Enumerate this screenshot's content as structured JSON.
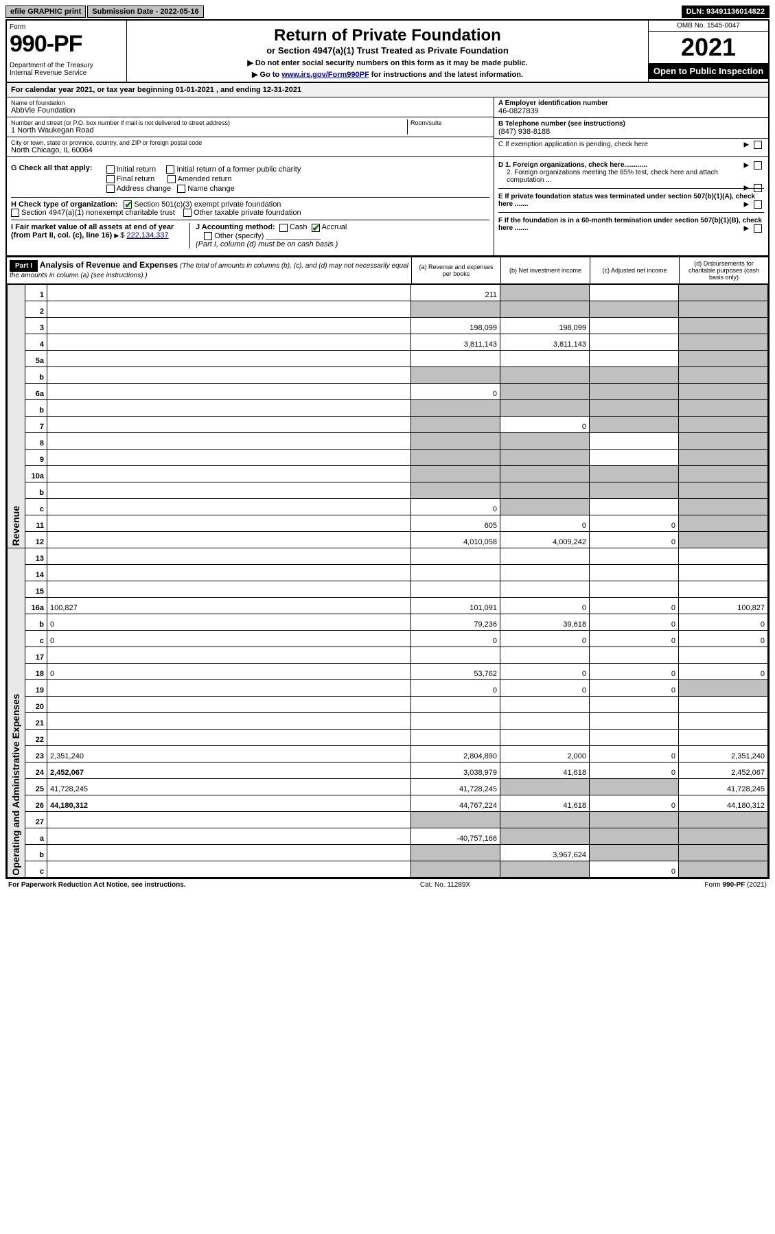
{
  "top": {
    "efile": "efile GRAPHIC print",
    "submission": "Submission Date - 2022-05-16",
    "dln": "DLN: 93491136014822"
  },
  "header": {
    "form_label": "Form",
    "form_num": "990-PF",
    "dept": "Department of the Treasury\nInternal Revenue Service",
    "title": "Return of Private Foundation",
    "subtitle": "or Section 4947(a)(1) Trust Treated as Private Foundation",
    "note1": "▶ Do not enter social security numbers on this form as it may be made public.",
    "note2_pre": "▶ Go to ",
    "note2_link": "www.irs.gov/Form990PF",
    "note2_post": " for instructions and the latest information.",
    "omb": "OMB No. 1545-0047",
    "year": "2021",
    "open": "Open to Public Inspection"
  },
  "cal_year": "For calendar year 2021, or tax year beginning 01-01-2021                          , and ending 12-31-2021",
  "info": {
    "name_lbl": "Name of foundation",
    "name": "AbbVie Foundation",
    "addr_lbl": "Number and street (or P.O. box number if mail is not delivered to street address)",
    "room_lbl": "Room/suite",
    "addr": "1 North Waukegan Road",
    "city_lbl": "City or town, state or province, country, and ZIP or foreign postal code",
    "city": "North Chicago, IL  60064",
    "ein_lbl": "A Employer identification number",
    "ein": "46-0827839",
    "phone_lbl": "B Telephone number (see instructions)",
    "phone": "(847) 938-8188",
    "c_lbl": "C If exemption application is pending, check here"
  },
  "g": {
    "label": "G Check all that apply:",
    "opts": [
      "Initial return",
      "Initial return of a former public charity",
      "Final return",
      "Amended return",
      "Address change",
      "Name change"
    ]
  },
  "h": {
    "label": "H Check type of organization:",
    "opt1": "Section 501(c)(3) exempt private foundation",
    "opt2": "Section 4947(a)(1) nonexempt charitable trust",
    "opt3": "Other taxable private foundation"
  },
  "i": {
    "label": "I Fair market value of all assets at end of year (from Part II, col. (c), line 16)",
    "value": "222,134,337"
  },
  "j": {
    "label": "J Accounting method:",
    "cash": "Cash",
    "accrual": "Accrual",
    "other": "Other (specify)",
    "note": "(Part I, column (d) must be on cash basis.)"
  },
  "d": {
    "d1": "D 1. Foreign organizations, check here............",
    "d2": "2. Foreign organizations meeting the 85% test, check here and attach computation ..."
  },
  "e": "E  If private foundation status was terminated under section 507(b)(1)(A), check here .......",
  "f": "F  If the foundation is in a 60-month termination under section 507(b)(1)(B), check here .......",
  "part1": {
    "label": "Part I",
    "title": "Analysis of Revenue and Expenses",
    "note": "(The total of amounts in columns (b), (c), and (d) may not necessarily equal the amounts in column (a) (see instructions).)",
    "col_a": "(a)  Revenue and expenses per books",
    "col_b": "(b)  Net investment income",
    "col_c": "(c)  Adjusted net income",
    "col_d": "(d)  Disbursements for charitable purposes (cash basis only)"
  },
  "side": {
    "revenue": "Revenue",
    "expenses": "Operating and Administrative Expenses"
  },
  "rows": [
    {
      "n": "1",
      "d": "",
      "a": "211",
      "b": "",
      "c": "",
      "cg": false,
      "dg": true,
      "bg": true
    },
    {
      "n": "2",
      "d": "",
      "a": "",
      "b": "",
      "c": "",
      "allgrey": true
    },
    {
      "n": "3",
      "d": "",
      "a": "198,099",
      "b": "198,099",
      "c": "",
      "dg": true
    },
    {
      "n": "4",
      "d": "",
      "a": "3,811,143",
      "b": "3,811,143",
      "c": "",
      "dg": true
    },
    {
      "n": "5a",
      "d": "",
      "a": "",
      "b": "",
      "c": "",
      "dg": true
    },
    {
      "n": "b",
      "d": "",
      "a": "",
      "b": "",
      "c": "",
      "allgrey": true,
      "ag": false
    },
    {
      "n": "6a",
      "d": "",
      "a": "0",
      "b": "",
      "c": "",
      "bg": true,
      "cg": true,
      "dg": true
    },
    {
      "n": "b",
      "d": "",
      "a": "",
      "b": "",
      "c": "",
      "allgrey": true
    },
    {
      "n": "7",
      "d": "",
      "a": "",
      "b": "0",
      "c": "",
      "ag": true,
      "cg": true,
      "dg": true
    },
    {
      "n": "8",
      "d": "",
      "a": "",
      "b": "",
      "c": "",
      "ag": true,
      "bg": true,
      "dg": true
    },
    {
      "n": "9",
      "d": "",
      "a": "",
      "b": "",
      "c": "",
      "ag": true,
      "bg": true,
      "dg": true
    },
    {
      "n": "10a",
      "d": "",
      "a": "",
      "b": "",
      "c": "",
      "allgrey": true
    },
    {
      "n": "b",
      "d": "",
      "a": "",
      "b": "",
      "c": "",
      "allgrey": true
    },
    {
      "n": "c",
      "d": "",
      "a": "0",
      "b": "",
      "c": "",
      "bg": true,
      "dg": true
    },
    {
      "n": "11",
      "d": "",
      "a": "605",
      "b": "0",
      "c": "0",
      "dg": true
    },
    {
      "n": "12",
      "d": "",
      "a": "4,010,058",
      "b": "4,009,242",
      "c": "0",
      "bold": true,
      "dg": true
    },
    {
      "n": "13",
      "d": "",
      "a": "",
      "b": "",
      "c": ""
    },
    {
      "n": "14",
      "d": "",
      "a": "",
      "b": "",
      "c": ""
    },
    {
      "n": "15",
      "d": "",
      "a": "",
      "b": "",
      "c": ""
    },
    {
      "n": "16a",
      "d": "100,827",
      "a": "101,091",
      "b": "0",
      "c": "0"
    },
    {
      "n": "b",
      "d": "0",
      "a": "79,236",
      "b": "39,618",
      "c": "0"
    },
    {
      "n": "c",
      "d": "0",
      "a": "0",
      "b": "0",
      "c": "0"
    },
    {
      "n": "17",
      "d": "",
      "a": "",
      "b": "",
      "c": ""
    },
    {
      "n": "18",
      "d": "0",
      "a": "53,762",
      "b": "0",
      "c": "0"
    },
    {
      "n": "19",
      "d": "",
      "a": "0",
      "b": "0",
      "c": "0",
      "dg": true
    },
    {
      "n": "20",
      "d": "",
      "a": "",
      "b": "",
      "c": ""
    },
    {
      "n": "21",
      "d": "",
      "a": "",
      "b": "",
      "c": ""
    },
    {
      "n": "22",
      "d": "",
      "a": "",
      "b": "",
      "c": ""
    },
    {
      "n": "23",
      "d": "2,351,240",
      "a": "2,804,890",
      "b": "2,000",
      "c": "0"
    },
    {
      "n": "24",
      "d": "2,452,067",
      "a": "3,038,979",
      "b": "41,618",
      "c": "0",
      "bold": true
    },
    {
      "n": "25",
      "d": "41,728,245",
      "a": "41,728,245",
      "b": "",
      "c": "",
      "bg": true,
      "cg": true
    },
    {
      "n": "26",
      "d": "44,180,312",
      "a": "44,767,224",
      "b": "41,618",
      "c": "0",
      "bold": true
    },
    {
      "n": "27",
      "d": "",
      "a": "",
      "b": "",
      "c": "",
      "allgrey": true,
      "ag": true
    },
    {
      "n": "a",
      "d": "",
      "a": "-40,757,166",
      "b": "",
      "c": "",
      "bold": true,
      "bg": true,
      "cg": true,
      "dg": true
    },
    {
      "n": "b",
      "d": "",
      "a": "",
      "b": "3,967,624",
      "c": "",
      "bold": true,
      "ag": true,
      "cg": true,
      "dg": true
    },
    {
      "n": "c",
      "d": "",
      "a": "",
      "b": "",
      "c": "0",
      "bold": true,
      "ag": true,
      "bg": true,
      "dg": true
    }
  ],
  "footer": {
    "left": "For Paperwork Reduction Act Notice, see instructions.",
    "mid": "Cat. No. 11289X",
    "right": "Form 990-PF (2021)"
  }
}
